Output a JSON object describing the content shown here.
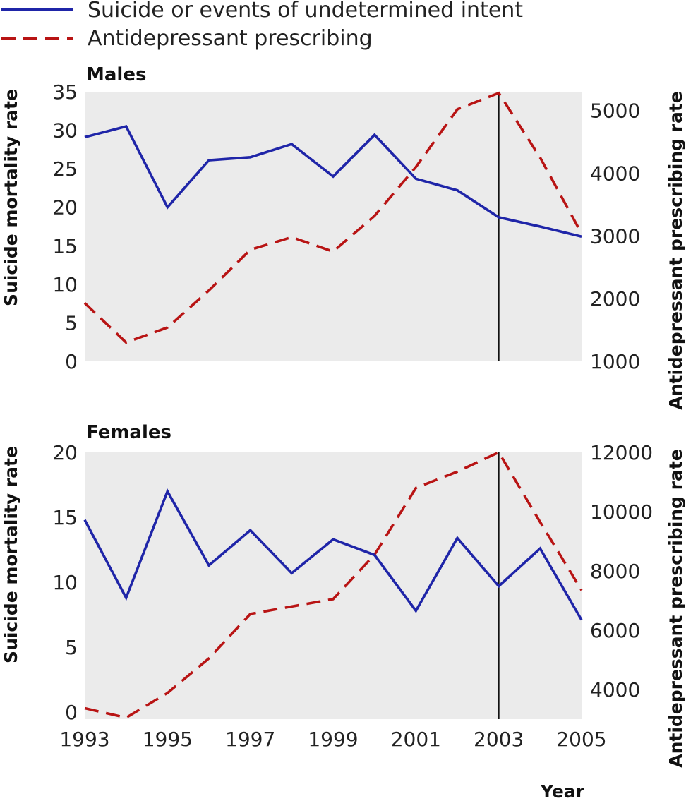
{
  "legend": {
    "items": [
      {
        "label": "Suicide or events of undetermined intent",
        "color": "#1f25a8",
        "style": "solid"
      },
      {
        "label": "Antidepressant prescribing",
        "color": "#b81414",
        "style": "dashed"
      }
    ]
  },
  "x_title": "Year",
  "chart_data": [
    {
      "type": "line",
      "title": "Males",
      "x": [
        1993,
        1994,
        1995,
        1996,
        1997,
        1998,
        1999,
        2000,
        2001,
        2002,
        2003,
        2004,
        2005
      ],
      "xlim": [
        1993,
        2005
      ],
      "x_tick_labels": [
        "1993",
        "1995",
        "1997",
        "1999",
        "2001",
        "2003",
        "2005"
      ],
      "x_ticks": [
        1993,
        1995,
        1997,
        1999,
        2001,
        2003,
        2005
      ],
      "ylabel": "Suicide mortality rate",
      "ylim": [
        0,
        35
      ],
      "y_ticks": [
        0,
        5,
        10,
        15,
        20,
        25,
        30,
        35
      ],
      "y2label": "Antidepressant prescribing rate",
      "y2lim": [
        1000,
        5300
      ],
      "y2_ticks": [
        1000,
        2000,
        3000,
        4000,
        5000
      ],
      "series": [
        {
          "axis": "left",
          "color": "#1f25a8",
          "style": "solid",
          "values": [
            29.1,
            30.5,
            20.0,
            26.1,
            26.5,
            28.2,
            24.0,
            29.4,
            23.7,
            22.2,
            18.7,
            17.5,
            16.2
          ]
        },
        {
          "axis": "right",
          "color": "#b81414",
          "style": "dashed",
          "values": [
            1930,
            1300,
            1540,
            2130,
            2780,
            2980,
            2750,
            3320,
            4100,
            5020,
            5280,
            4250,
            3040
          ]
        }
      ],
      "marker_year": 2003,
      "grid": false,
      "background": "#ebebeb"
    },
    {
      "type": "line",
      "title": "Females",
      "x": [
        1993,
        1994,
        1995,
        1996,
        1997,
        1998,
        1999,
        2000,
        2001,
        2002,
        2003,
        2004,
        2005
      ],
      "xlim": [
        1993,
        2005
      ],
      "x_tick_labels": [
        "1993",
        "1995",
        "1997",
        "1999",
        "2001",
        "2003",
        "2005"
      ],
      "x_ticks": [
        1993,
        1995,
        1997,
        1999,
        2001,
        2003,
        2005
      ],
      "ylabel": "Suicide mortality rate",
      "ylim": [
        0,
        20
      ],
      "y_ticks": [
        0,
        5,
        10,
        15,
        20
      ],
      "y2label": "Antidepressant prescribing rate",
      "y2lim": [
        3000,
        12000
      ],
      "y2_ticks": [
        4000,
        6000,
        8000,
        10000,
        12000
      ],
      "series": [
        {
          "axis": "left",
          "color": "#1f25a8",
          "style": "solid",
          "values": [
            14.8,
            8.8,
            17.0,
            11.3,
            14.0,
            10.7,
            13.3,
            12.1,
            7.8,
            13.4,
            9.7,
            12.6,
            7.1
          ]
        },
        {
          "axis": "right",
          "color": "#b81414",
          "style": "dashed",
          "values": [
            3370,
            3050,
            3880,
            5050,
            6550,
            6800,
            7050,
            8550,
            10800,
            11350,
            12000,
            9650,
            7350
          ]
        }
      ],
      "marker_year": 2003,
      "grid": false,
      "background": "#ebebeb"
    }
  ]
}
